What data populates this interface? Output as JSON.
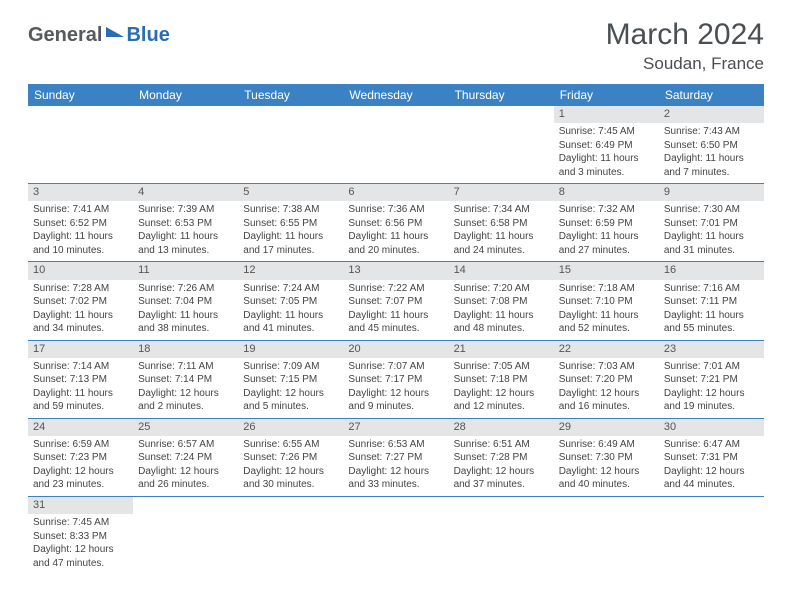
{
  "brand": {
    "part1": "General",
    "part2": "Blue"
  },
  "title": "March 2024",
  "location": "Soudan, France",
  "weekdays": [
    "Sunday",
    "Monday",
    "Tuesday",
    "Wednesday",
    "Thursday",
    "Friday",
    "Saturday"
  ],
  "colors": {
    "header_bg": "#3b82c4",
    "header_text": "#ffffff",
    "daynum_bg": "#e4e5e6",
    "row_border": "#3b82c4",
    "logo_gray": "#555a5e",
    "logo_blue": "#2a6db5"
  },
  "weeks": [
    [
      {
        "num": "",
        "lines": []
      },
      {
        "num": "",
        "lines": []
      },
      {
        "num": "",
        "lines": []
      },
      {
        "num": "",
        "lines": []
      },
      {
        "num": "",
        "lines": []
      },
      {
        "num": "1",
        "lines": [
          "Sunrise: 7:45 AM",
          "Sunset: 6:49 PM",
          "Daylight: 11 hours",
          "and 3 minutes."
        ]
      },
      {
        "num": "2",
        "lines": [
          "Sunrise: 7:43 AM",
          "Sunset: 6:50 PM",
          "Daylight: 11 hours",
          "and 7 minutes."
        ]
      }
    ],
    [
      {
        "num": "3",
        "lines": [
          "Sunrise: 7:41 AM",
          "Sunset: 6:52 PM",
          "Daylight: 11 hours",
          "and 10 minutes."
        ]
      },
      {
        "num": "4",
        "lines": [
          "Sunrise: 7:39 AM",
          "Sunset: 6:53 PM",
          "Daylight: 11 hours",
          "and 13 minutes."
        ]
      },
      {
        "num": "5",
        "lines": [
          "Sunrise: 7:38 AM",
          "Sunset: 6:55 PM",
          "Daylight: 11 hours",
          "and 17 minutes."
        ]
      },
      {
        "num": "6",
        "lines": [
          "Sunrise: 7:36 AM",
          "Sunset: 6:56 PM",
          "Daylight: 11 hours",
          "and 20 minutes."
        ]
      },
      {
        "num": "7",
        "lines": [
          "Sunrise: 7:34 AM",
          "Sunset: 6:58 PM",
          "Daylight: 11 hours",
          "and 24 minutes."
        ]
      },
      {
        "num": "8",
        "lines": [
          "Sunrise: 7:32 AM",
          "Sunset: 6:59 PM",
          "Daylight: 11 hours",
          "and 27 minutes."
        ]
      },
      {
        "num": "9",
        "lines": [
          "Sunrise: 7:30 AM",
          "Sunset: 7:01 PM",
          "Daylight: 11 hours",
          "and 31 minutes."
        ]
      }
    ],
    [
      {
        "num": "10",
        "lines": [
          "Sunrise: 7:28 AM",
          "Sunset: 7:02 PM",
          "Daylight: 11 hours",
          "and 34 minutes."
        ]
      },
      {
        "num": "11",
        "lines": [
          "Sunrise: 7:26 AM",
          "Sunset: 7:04 PM",
          "Daylight: 11 hours",
          "and 38 minutes."
        ]
      },
      {
        "num": "12",
        "lines": [
          "Sunrise: 7:24 AM",
          "Sunset: 7:05 PM",
          "Daylight: 11 hours",
          "and 41 minutes."
        ]
      },
      {
        "num": "13",
        "lines": [
          "Sunrise: 7:22 AM",
          "Sunset: 7:07 PM",
          "Daylight: 11 hours",
          "and 45 minutes."
        ]
      },
      {
        "num": "14",
        "lines": [
          "Sunrise: 7:20 AM",
          "Sunset: 7:08 PM",
          "Daylight: 11 hours",
          "and 48 minutes."
        ]
      },
      {
        "num": "15",
        "lines": [
          "Sunrise: 7:18 AM",
          "Sunset: 7:10 PM",
          "Daylight: 11 hours",
          "and 52 minutes."
        ]
      },
      {
        "num": "16",
        "lines": [
          "Sunrise: 7:16 AM",
          "Sunset: 7:11 PM",
          "Daylight: 11 hours",
          "and 55 minutes."
        ]
      }
    ],
    [
      {
        "num": "17",
        "lines": [
          "Sunrise: 7:14 AM",
          "Sunset: 7:13 PM",
          "Daylight: 11 hours",
          "and 59 minutes."
        ]
      },
      {
        "num": "18",
        "lines": [
          "Sunrise: 7:11 AM",
          "Sunset: 7:14 PM",
          "Daylight: 12 hours",
          "and 2 minutes."
        ]
      },
      {
        "num": "19",
        "lines": [
          "Sunrise: 7:09 AM",
          "Sunset: 7:15 PM",
          "Daylight: 12 hours",
          "and 5 minutes."
        ]
      },
      {
        "num": "20",
        "lines": [
          "Sunrise: 7:07 AM",
          "Sunset: 7:17 PM",
          "Daylight: 12 hours",
          "and 9 minutes."
        ]
      },
      {
        "num": "21",
        "lines": [
          "Sunrise: 7:05 AM",
          "Sunset: 7:18 PM",
          "Daylight: 12 hours",
          "and 12 minutes."
        ]
      },
      {
        "num": "22",
        "lines": [
          "Sunrise: 7:03 AM",
          "Sunset: 7:20 PM",
          "Daylight: 12 hours",
          "and 16 minutes."
        ]
      },
      {
        "num": "23",
        "lines": [
          "Sunrise: 7:01 AM",
          "Sunset: 7:21 PM",
          "Daylight: 12 hours",
          "and 19 minutes."
        ]
      }
    ],
    [
      {
        "num": "24",
        "lines": [
          "Sunrise: 6:59 AM",
          "Sunset: 7:23 PM",
          "Daylight: 12 hours",
          "and 23 minutes."
        ]
      },
      {
        "num": "25",
        "lines": [
          "Sunrise: 6:57 AM",
          "Sunset: 7:24 PM",
          "Daylight: 12 hours",
          "and 26 minutes."
        ]
      },
      {
        "num": "26",
        "lines": [
          "Sunrise: 6:55 AM",
          "Sunset: 7:26 PM",
          "Daylight: 12 hours",
          "and 30 minutes."
        ]
      },
      {
        "num": "27",
        "lines": [
          "Sunrise: 6:53 AM",
          "Sunset: 7:27 PM",
          "Daylight: 12 hours",
          "and 33 minutes."
        ]
      },
      {
        "num": "28",
        "lines": [
          "Sunrise: 6:51 AM",
          "Sunset: 7:28 PM",
          "Daylight: 12 hours",
          "and 37 minutes."
        ]
      },
      {
        "num": "29",
        "lines": [
          "Sunrise: 6:49 AM",
          "Sunset: 7:30 PM",
          "Daylight: 12 hours",
          "and 40 minutes."
        ]
      },
      {
        "num": "30",
        "lines": [
          "Sunrise: 6:47 AM",
          "Sunset: 7:31 PM",
          "Daylight: 12 hours",
          "and 44 minutes."
        ]
      }
    ],
    [
      {
        "num": "31",
        "lines": [
          "Sunrise: 7:45 AM",
          "Sunset: 8:33 PM",
          "Daylight: 12 hours",
          "and 47 minutes."
        ]
      },
      {
        "num": "",
        "lines": []
      },
      {
        "num": "",
        "lines": []
      },
      {
        "num": "",
        "lines": []
      },
      {
        "num": "",
        "lines": []
      },
      {
        "num": "",
        "lines": []
      },
      {
        "num": "",
        "lines": []
      }
    ]
  ]
}
